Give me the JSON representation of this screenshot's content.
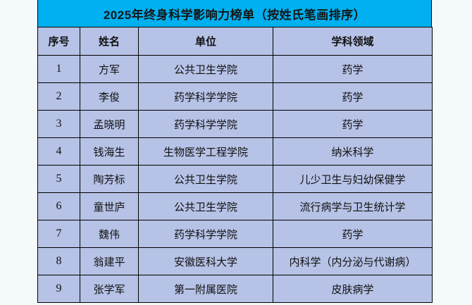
{
  "title": "2025年终身科学影响力榜单（按姓氏笔画排序）",
  "colors": {
    "title_bg": "#00B0F0",
    "cell_bg": "#B6C2E6",
    "border": "#000000",
    "page_bg": "#F4FAF9",
    "text": "#111111"
  },
  "table": {
    "columns": [
      "序号",
      "姓名",
      "单位",
      "学科领域"
    ],
    "rows": [
      {
        "rank": "1",
        "name": "方军",
        "unit": "公共卫生学院",
        "field": "药学"
      },
      {
        "rank": "2",
        "name": "李俊",
        "unit": "药学科学学院",
        "field": "药学"
      },
      {
        "rank": "3",
        "name": "孟晓明",
        "unit": "药学科学学院",
        "field": "药学"
      },
      {
        "rank": "4",
        "name": "钱海生",
        "unit": "生物医学工程学院",
        "field": "纳米科学"
      },
      {
        "rank": "5",
        "name": "陶芳标",
        "unit": "公共卫生学院",
        "field": "儿少卫生与妇幼保健学"
      },
      {
        "rank": "6",
        "name": "童世庐",
        "unit": "公共卫生学院",
        "field": "流行病学与卫生统计学"
      },
      {
        "rank": "7",
        "name": "魏伟",
        "unit": "药学科学学院",
        "field": "药学"
      },
      {
        "rank": "8",
        "name": "翁建平",
        "unit": "安徽医科大学",
        "field": "内科学（内分泌与代谢病）"
      },
      {
        "rank": "9",
        "name": "张学军",
        "unit": "第一附属医院",
        "field": "皮肤病学"
      }
    ]
  }
}
